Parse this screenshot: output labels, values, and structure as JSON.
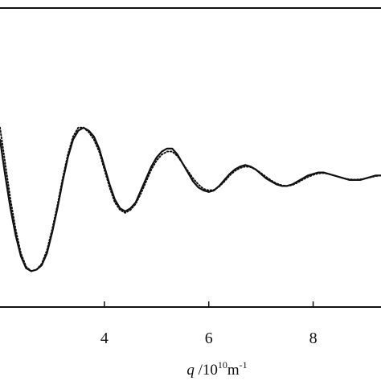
{
  "chart_data": {
    "type": "line",
    "title": "",
    "xlabel": "q /10^10 m^-1",
    "xlabel_parts": {
      "var": "q",
      "mid": " /10",
      "exp1": "10",
      "unit": "m",
      "exp2": "-1"
    },
    "ylabel": "",
    "xlim": [
      2.0,
      9.3
    ],
    "ylim": [
      0.0,
      1.0
    ],
    "x_ticks": [
      4,
      6,
      8
    ],
    "x_tick_labels": [
      "4",
      "6",
      "8"
    ],
    "grid": false,
    "legend": "none",
    "series": [
      {
        "style": "solid",
        "x": [
          2.0,
          2.1,
          2.2,
          2.3,
          2.4,
          2.5,
          2.6,
          2.7,
          2.8,
          2.9,
          3.0,
          3.1,
          3.2,
          3.3,
          3.4,
          3.5,
          3.6,
          3.7,
          3.8,
          3.9,
          4.0,
          4.1,
          4.2,
          4.3,
          4.4,
          4.5,
          4.6,
          4.7,
          4.8,
          4.9,
          5.0,
          5.1,
          5.2,
          5.3,
          5.4,
          5.5,
          5.6,
          5.7,
          5.8,
          5.9,
          6.0,
          6.1,
          6.2,
          6.3,
          6.4,
          6.5,
          6.6,
          6.7,
          6.8,
          6.9,
          7.0,
          7.1,
          7.2,
          7.3,
          7.4,
          7.5,
          7.6,
          7.7,
          7.8,
          7.9,
          8.0,
          8.1,
          8.2,
          8.3,
          8.4,
          8.5,
          8.6,
          8.7,
          8.8,
          8.9,
          9.0,
          9.1,
          9.2,
          9.3
        ],
        "y": [
          0.56,
          0.44,
          0.33,
          0.24,
          0.17,
          0.13,
          0.12,
          0.125,
          0.14,
          0.18,
          0.25,
          0.33,
          0.42,
          0.5,
          0.56,
          0.59,
          0.6,
          0.59,
          0.57,
          0.53,
          0.47,
          0.41,
          0.36,
          0.33,
          0.32,
          0.33,
          0.35,
          0.39,
          0.43,
          0.47,
          0.5,
          0.52,
          0.53,
          0.53,
          0.51,
          0.48,
          0.45,
          0.42,
          0.4,
          0.39,
          0.385,
          0.39,
          0.405,
          0.425,
          0.445,
          0.46,
          0.47,
          0.475,
          0.47,
          0.46,
          0.445,
          0.43,
          0.42,
          0.41,
          0.405,
          0.405,
          0.41,
          0.42,
          0.43,
          0.44,
          0.445,
          0.45,
          0.45,
          0.445,
          0.44,
          0.435,
          0.43,
          0.425,
          0.425,
          0.425,
          0.43,
          0.435,
          0.44,
          0.44
        ]
      },
      {
        "style": "dotted",
        "x": [
          2.0,
          2.1,
          2.2,
          2.3,
          2.4,
          2.5,
          2.6,
          2.7,
          2.8,
          2.9,
          3.0,
          3.1,
          3.2,
          3.3,
          3.4,
          3.5,
          3.6,
          3.7,
          3.8,
          3.9,
          4.0,
          4.1,
          4.2,
          4.3,
          4.4,
          4.5,
          4.6,
          4.7,
          4.8,
          4.9,
          5.0,
          5.1,
          5.2,
          5.3,
          5.4,
          5.5,
          5.6,
          5.7,
          5.8,
          5.9,
          6.0,
          6.1,
          6.2,
          6.3,
          6.4,
          6.5,
          6.6,
          6.7,
          6.8,
          6.9,
          7.0,
          7.1,
          7.2,
          7.3,
          7.4,
          7.5,
          7.6,
          7.7,
          7.8,
          7.9,
          8.0,
          8.1,
          8.2,
          8.3,
          8.4,
          8.5,
          8.6,
          8.7,
          8.8,
          8.9,
          9.0,
          9.1,
          9.2,
          9.3
        ],
        "y": [
          0.6,
          0.48,
          0.36,
          0.26,
          0.18,
          0.135,
          0.12,
          0.125,
          0.145,
          0.19,
          0.26,
          0.34,
          0.43,
          0.51,
          0.57,
          0.6,
          0.6,
          0.585,
          0.56,
          0.52,
          0.46,
          0.4,
          0.35,
          0.325,
          0.315,
          0.325,
          0.345,
          0.38,
          0.42,
          0.46,
          0.49,
          0.51,
          0.52,
          0.52,
          0.505,
          0.48,
          0.455,
          0.43,
          0.41,
          0.395,
          0.39,
          0.392,
          0.403,
          0.42,
          0.44,
          0.455,
          0.465,
          0.47,
          0.468,
          0.46,
          0.448,
          0.435,
          0.423,
          0.413,
          0.407,
          0.405,
          0.408,
          0.416,
          0.426,
          0.435,
          0.442,
          0.447,
          0.448,
          0.445,
          0.44,
          0.435,
          0.43,
          0.427,
          0.426,
          0.427,
          0.43,
          0.434,
          0.438,
          0.44
        ]
      }
    ]
  }
}
